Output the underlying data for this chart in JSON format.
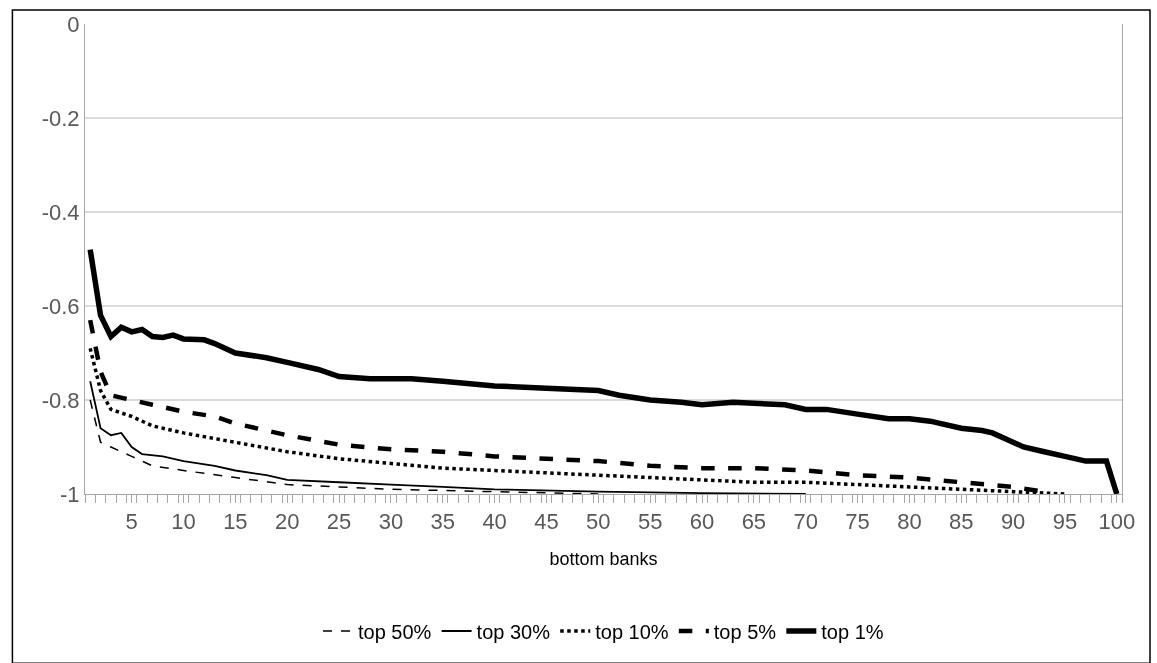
{
  "chart_data": {
    "type": "line",
    "xlabel": "bottom banks",
    "xlim": [
      0.5,
      100.5
    ],
    "xticks": [
      5,
      10,
      15,
      20,
      25,
      30,
      35,
      40,
      45,
      50,
      55,
      60,
      65,
      70,
      75,
      80,
      85,
      90,
      95,
      100
    ],
    "ylim": [
      -1,
      0
    ],
    "yticks": [
      0,
      -0.2,
      -0.4,
      -0.6,
      -0.8,
      -1
    ],
    "grid": "y",
    "legend": "bottom",
    "marker": "none",
    "series": [
      {
        "name": "top 50%",
        "color": "#000000",
        "line_style": "dashed",
        "x": [
          1,
          2,
          3,
          5,
          7,
          10,
          15,
          20,
          25,
          30,
          40,
          50
        ],
        "values": [
          -0.8,
          -0.89,
          -0.9,
          -0.92,
          -0.94,
          -0.95,
          -0.965,
          -0.98,
          -0.985,
          -0.99,
          -0.995,
          -1.0
        ]
      },
      {
        "name": "top 30%",
        "color": "#000000",
        "line_style": "solid",
        "x": [
          1,
          2,
          3,
          4,
          5,
          6,
          8,
          10,
          13,
          15,
          18,
          20,
          25,
          30,
          35,
          40,
          50,
          60,
          70
        ],
        "values": [
          -0.76,
          -0.86,
          -0.875,
          -0.87,
          -0.9,
          -0.915,
          -0.92,
          -0.93,
          -0.94,
          -0.95,
          -0.96,
          -0.97,
          -0.975,
          -0.98,
          -0.985,
          -0.99,
          -0.995,
          -0.998,
          -1.0
        ]
      },
      {
        "name": "top 10%",
        "color": "#000000",
        "line_style": "dotted",
        "x": [
          1,
          2,
          3,
          5,
          7,
          10,
          15,
          20,
          25,
          30,
          35,
          40,
          45,
          50,
          55,
          60,
          65,
          70,
          75,
          80,
          85,
          90,
          95
        ],
        "values": [
          -0.69,
          -0.78,
          -0.82,
          -0.835,
          -0.855,
          -0.87,
          -0.89,
          -0.91,
          -0.925,
          -0.935,
          -0.945,
          -0.95,
          -0.955,
          -0.96,
          -0.965,
          -0.97,
          -0.975,
          -0.975,
          -0.98,
          -0.985,
          -0.99,
          -0.995,
          -1.0
        ]
      },
      {
        "name": "top 5%",
        "color": "#000000",
        "line_style": "dashed",
        "x": [
          1,
          2,
          3,
          5,
          7,
          10,
          13,
          15,
          20,
          25,
          30,
          35,
          40,
          45,
          50,
          55,
          60,
          65,
          70,
          75,
          80,
          85,
          90,
          93
        ],
        "values": [
          -0.63,
          -0.74,
          -0.79,
          -0.8,
          -0.81,
          -0.825,
          -0.835,
          -0.85,
          -0.875,
          -0.895,
          -0.905,
          -0.91,
          -0.92,
          -0.925,
          -0.93,
          -0.94,
          -0.945,
          -0.945,
          -0.95,
          -0.96,
          -0.965,
          -0.975,
          -0.985,
          -0.995
        ]
      },
      {
        "name": "top 1%",
        "color": "#000000",
        "line_style": "solid",
        "x": [
          1,
          2,
          3,
          4,
          5,
          6,
          7,
          8,
          9,
          10,
          12,
          13,
          15,
          18,
          20,
          23,
          25,
          28,
          32,
          35,
          40,
          45,
          50,
          52,
          55,
          58,
          60,
          63,
          68,
          70,
          72,
          75,
          78,
          80,
          82,
          85,
          87,
          88,
          90,
          91,
          93,
          95,
          97,
          99,
          100
        ],
        "values": [
          -0.48,
          -0.62,
          -0.665,
          -0.645,
          -0.655,
          -0.65,
          -0.665,
          -0.667,
          -0.662,
          -0.67,
          -0.672,
          -0.68,
          -0.7,
          -0.71,
          -0.72,
          -0.735,
          -0.75,
          -0.755,
          -0.755,
          -0.76,
          -0.77,
          -0.775,
          -0.78,
          -0.79,
          -0.8,
          -0.805,
          -0.81,
          -0.805,
          -0.81,
          -0.82,
          -0.82,
          -0.83,
          -0.84,
          -0.84,
          -0.845,
          -0.86,
          -0.865,
          -0.87,
          -0.89,
          -0.9,
          -0.91,
          -0.92,
          -0.93,
          -0.93,
          -1.0
        ]
      }
    ]
  }
}
